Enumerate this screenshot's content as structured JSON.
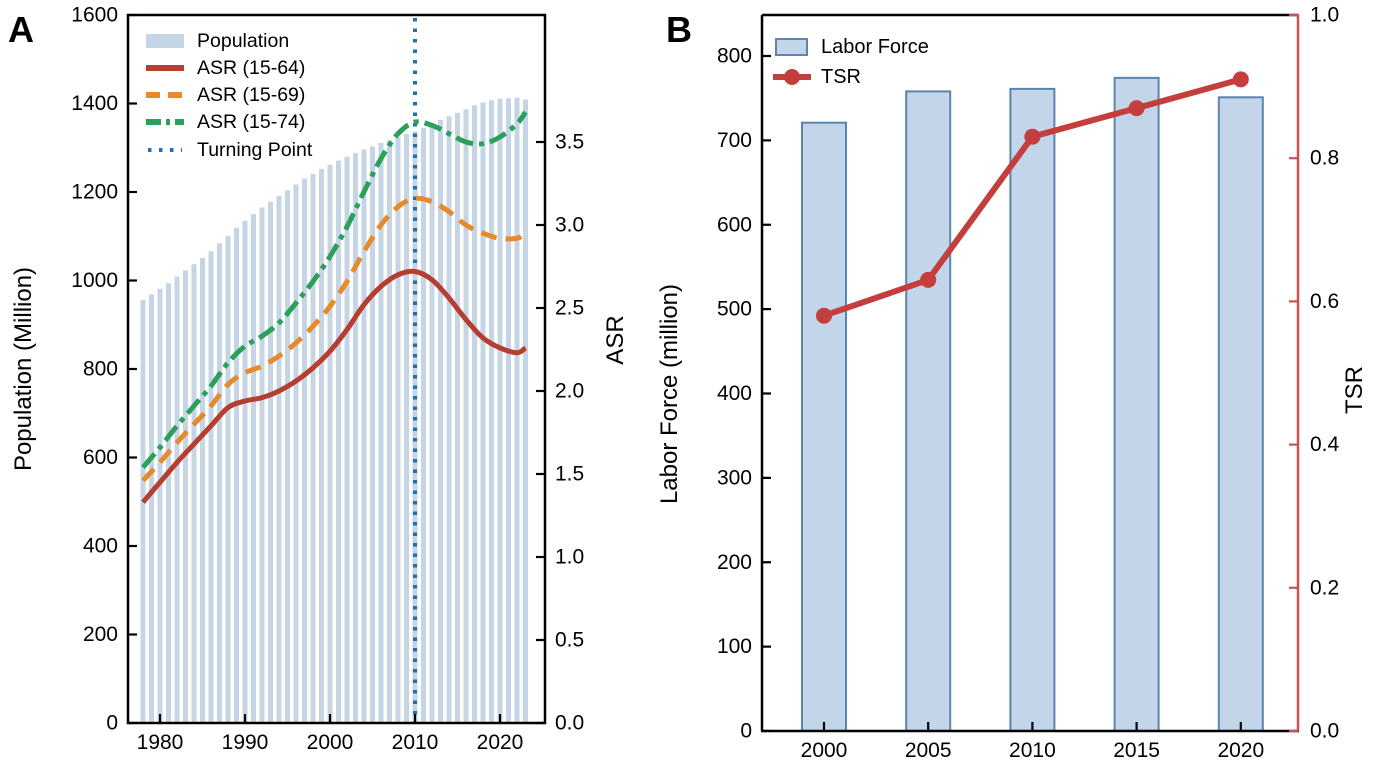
{
  "figure": {
    "panel_a_label": "A",
    "panel_b_label": "B"
  },
  "chart_data": [
    {
      "id": "panel-A",
      "type": "bar+line",
      "ylabel_left": "Population (Million)",
      "ylabel_right": "ASR",
      "ylim_left": [
        0,
        1600
      ],
      "ylim_right_ticks": [
        0.0,
        3.5
      ],
      "yticks_left": [
        "0",
        "200",
        "400",
        "600",
        "800",
        "1000",
        "1200",
        "1400",
        "1600"
      ],
      "yticks_right": [
        "0.0",
        "0.5",
        "1.0",
        "1.5",
        "2.0",
        "2.5",
        "3.0",
        "3.5"
      ],
      "xticks": [
        "1980",
        "1990",
        "2000",
        "2010",
        "2020"
      ],
      "xtick_years": [
        1980,
        1990,
        2000,
        2010,
        2020
      ],
      "legend": [
        "Population",
        "ASR (15-64)",
        "ASR (15-69)",
        "ASR (15-74)",
        "Turning Point"
      ],
      "bar_series": {
        "name": "Population",
        "color": "#c6d5e5",
        "years_start": 1978,
        "values": [
          956,
          969,
          981,
          994,
          1009,
          1023,
          1037,
          1051,
          1066,
          1084,
          1101,
          1119,
          1135,
          1150,
          1165,
          1178,
          1191,
          1204,
          1217,
          1230,
          1241,
          1252,
          1262,
          1271,
          1280,
          1288,
          1296,
          1303,
          1311,
          1317,
          1324,
          1331,
          1337,
          1345,
          1354,
          1363,
          1371,
          1379,
          1387,
          1396,
          1402,
          1407,
          1411,
          1412,
          1413,
          1409
        ]
      },
      "series": [
        {
          "name": "ASR (15-64)",
          "color": "#b63e31",
          "dash": "solid",
          "points": [
            [
              1978,
              1.33
            ],
            [
              1980,
              1.45
            ],
            [
              1982,
              1.57
            ],
            [
              1984,
              1.68
            ],
            [
              1986,
              1.79
            ],
            [
              1988,
              1.9
            ],
            [
              1990,
              1.94
            ],
            [
              1992,
              1.96
            ],
            [
              1994,
              2.0
            ],
            [
              1996,
              2.06
            ],
            [
              1998,
              2.14
            ],
            [
              2000,
              2.24
            ],
            [
              2002,
              2.37
            ],
            [
              2004,
              2.52
            ],
            [
              2006,
              2.63
            ],
            [
              2008,
              2.7
            ],
            [
              2010,
              2.72
            ],
            [
              2012,
              2.67
            ],
            [
              2014,
              2.56
            ],
            [
              2016,
              2.43
            ],
            [
              2018,
              2.32
            ],
            [
              2020,
              2.26
            ],
            [
              2022,
              2.23
            ],
            [
              2023,
              2.26
            ]
          ]
        },
        {
          "name": "ASR (15-69)",
          "color": "#e68a2c",
          "dash": "dashed",
          "points": [
            [
              1978,
              1.46
            ],
            [
              1980,
              1.57
            ],
            [
              1982,
              1.69
            ],
            [
              1984,
              1.8
            ],
            [
              1986,
              1.91
            ],
            [
              1988,
              2.04
            ],
            [
              1990,
              2.11
            ],
            [
              1992,
              2.15
            ],
            [
              1994,
              2.21
            ],
            [
              1996,
              2.29
            ],
            [
              1998,
              2.39
            ],
            [
              2000,
              2.51
            ],
            [
              2002,
              2.66
            ],
            [
              2004,
              2.84
            ],
            [
              2006,
              3.0
            ],
            [
              2008,
              3.11
            ],
            [
              2010,
              3.16
            ],
            [
              2012,
              3.14
            ],
            [
              2014,
              3.08
            ],
            [
              2016,
              3.0
            ],
            [
              2018,
              2.95
            ],
            [
              2020,
              2.92
            ],
            [
              2022,
              2.92
            ],
            [
              2023,
              2.95
            ]
          ]
        },
        {
          "name": "ASR (15-74)",
          "color": "#2ba05a",
          "dash": "dashdot",
          "points": [
            [
              1978,
              1.54
            ],
            [
              1980,
              1.66
            ],
            [
              1982,
              1.79
            ],
            [
              1984,
              1.91
            ],
            [
              1986,
              2.03
            ],
            [
              1988,
              2.17
            ],
            [
              1990,
              2.27
            ],
            [
              1992,
              2.33
            ],
            [
              1994,
              2.41
            ],
            [
              1996,
              2.53
            ],
            [
              1998,
              2.66
            ],
            [
              2000,
              2.81
            ],
            [
              2002,
              2.99
            ],
            [
              2004,
              3.2
            ],
            [
              2006,
              3.4
            ],
            [
              2008,
              3.55
            ],
            [
              2010,
              3.62
            ],
            [
              2012,
              3.6
            ],
            [
              2014,
              3.55
            ],
            [
              2016,
              3.5
            ],
            [
              2018,
              3.49
            ],
            [
              2020,
              3.53
            ],
            [
              2022,
              3.61
            ],
            [
              2023,
              3.68
            ]
          ]
        }
      ],
      "turning_point": {
        "name": "Turning Point",
        "year": 2010,
        "color": "#1f6fb2"
      }
    },
    {
      "id": "panel-B",
      "type": "bar+line",
      "ylabel_left": "Labor Force (million)",
      "ylabel_right": "TSR",
      "ylim_left": [
        0,
        800
      ],
      "ylim_right": [
        0.0,
        1.0
      ],
      "yticks_left": [
        "0",
        "100",
        "200",
        "300",
        "400",
        "500",
        "600",
        "700",
        "800"
      ],
      "yticks_right": [
        "0.0",
        "0.2",
        "0.4",
        "0.6",
        "0.8",
        "1.0"
      ],
      "categories": [
        "2000",
        "2005",
        "2010",
        "2015",
        "2020"
      ],
      "legend": [
        "Labor Force",
        "TSR"
      ],
      "bar_series": {
        "name": "Labor Force",
        "fill": "#c3d5e8",
        "border": "#5d84ad",
        "values": [
          721,
          758,
          761,
          774,
          751
        ]
      },
      "line_series": {
        "name": "TSR",
        "color": "#c43e3e",
        "axis_color": "#cb5153",
        "values": [
          0.58,
          0.63,
          0.83,
          0.87,
          0.91
        ]
      }
    }
  ]
}
